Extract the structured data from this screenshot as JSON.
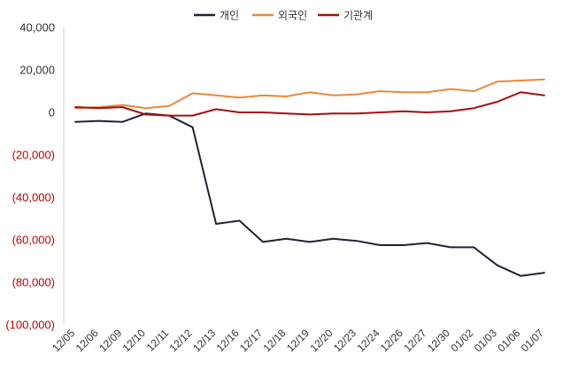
{
  "chart_data": {
    "type": "line",
    "title": "",
    "xlabel": "",
    "ylabel": "",
    "ylim": [
      -100000,
      40000
    ],
    "yticks": [
      40000,
      20000,
      0,
      -20000,
      -40000,
      -60000,
      -80000,
      -100000
    ],
    "ytick_labels": [
      "40,000",
      "20,000",
      "0",
      "(20,000)",
      "(40,000)",
      "(60,000)",
      "(80,000)",
      "(100,000)"
    ],
    "negative_tick_color": "#c00000",
    "tick_color": "#333333",
    "grid": false,
    "legend_position": "top-center",
    "categories": [
      "12/05",
      "12/06",
      "12/09",
      "12/10",
      "12/11",
      "12/12",
      "12/13",
      "12/16",
      "12/17",
      "12/18",
      "12/19",
      "12/20",
      "12/23",
      "12/24",
      "12/26",
      "12/27",
      "12/30",
      "01/02",
      "01/03",
      "01/06",
      "01/07"
    ],
    "series": [
      {
        "name": "개인",
        "color": "#1f2235",
        "values": [
          -4500,
          -4000,
          -4500,
          -500,
          -1500,
          -7000,
          -52500,
          -51000,
          -61000,
          -59500,
          -61000,
          -59500,
          -60500,
          -62500,
          -62500,
          -61500,
          -63500,
          -63500,
          -72000,
          -77000,
          -75500
        ]
      },
      {
        "name": "외국인",
        "color": "#e8883a",
        "values": [
          2000,
          2500,
          3500,
          2000,
          3000,
          9000,
          8000,
          7000,
          8000,
          7500,
          9500,
          8000,
          8500,
          10000,
          9500,
          9500,
          11000,
          10000,
          14500,
          15000,
          15500
        ]
      },
      {
        "name": "기관계",
        "color": "#a50e0e",
        "values": [
          2500,
          2000,
          2500,
          -1000,
          -1500,
          -1500,
          1500,
          0,
          0,
          -500,
          -1000,
          -500,
          -500,
          0,
          500,
          0,
          500,
          2000,
          5000,
          9500,
          8000
        ]
      }
    ]
  }
}
